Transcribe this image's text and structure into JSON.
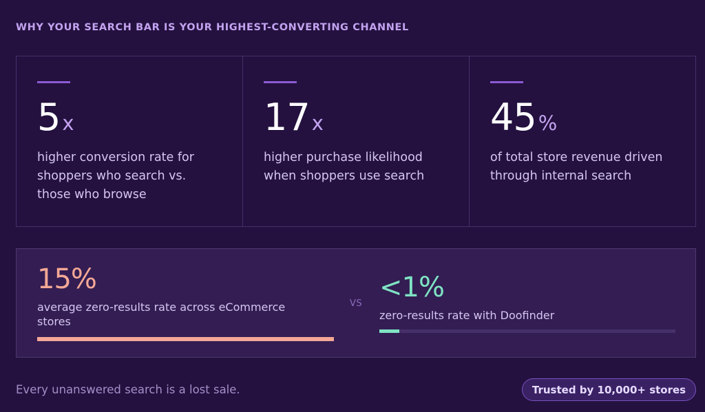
{
  "heading": "WHY YOUR SEARCH BAR IS YOUR HIGHEST-CONVERTING CHANNEL",
  "stats": [
    {
      "number": "5",
      "unit": "x",
      "description": "higher conversion rate for shoppers who search vs. those who browse"
    },
    {
      "number": "17",
      "unit": "x",
      "description": "higher purchase likelihood when shoppers use search"
    },
    {
      "number": "45",
      "unit": "%",
      "description": "of total store revenue driven through internal search"
    }
  ],
  "comparison": {
    "left": {
      "value": "15%",
      "description": "average zero-results rate across eCommerce stores",
      "bar_fraction": 1.0
    },
    "vs_label": "VS",
    "right": {
      "value": "<1%",
      "description": "zero-results rate with Doofinder",
      "bar_fraction": 0.067
    }
  },
  "footer": {
    "tagline": "Every unanswered search is a lost sale.",
    "badge": "Trusted by 10,000+ stores"
  },
  "colors": {
    "background": "#24113f",
    "accent_purple": "#8e5bd6",
    "salmon": "#f4a896",
    "mint": "#7fe3c3"
  }
}
